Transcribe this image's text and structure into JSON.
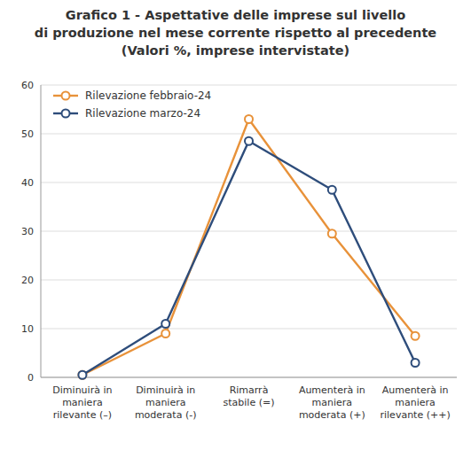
{
  "chart_data": {
    "type": "line",
    "title": "Grafico 1 - Aspettative delle imprese sul livello\ndi produzione nel mese corrente rispetto al precedente\n(Valori %, imprese intervistate)",
    "categories": [
      "Diminuirà in\nmaniera\nrilevante (–)",
      "Diminuirà in\nmaniera\nmoderata (-)",
      "Rimarrà\nstabile (=)",
      "Aumenterà in\nmaniera\nmoderata (+)",
      "Aumenterà in\nmaniera\nrilevante (++)"
    ],
    "series": [
      {
        "name": "Rilevazione febbraio-24",
        "color": "#E8923A",
        "values": [
          0.5,
          9.0,
          53.0,
          29.5,
          8.5
        ]
      },
      {
        "name": "Rilevazione marzo-24",
        "color": "#2E4D7B",
        "values": [
          0.5,
          11.0,
          48.5,
          38.5,
          3.0
        ]
      }
    ],
    "ylim": [
      0,
      60
    ],
    "yticks": [
      0,
      10,
      20,
      30,
      40,
      50,
      60
    ],
    "grid": true,
    "legend": "upper left",
    "marker": "circle"
  }
}
